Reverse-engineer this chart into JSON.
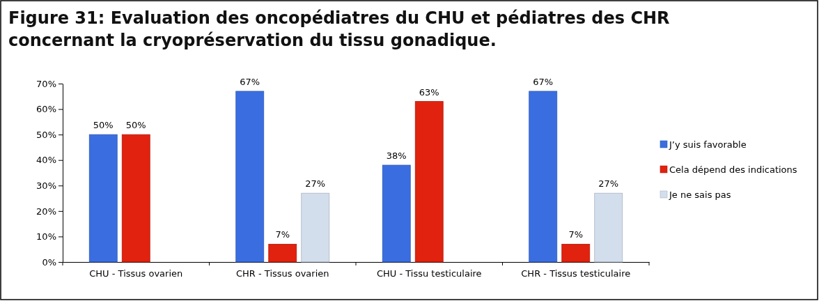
{
  "chart_data": {
    "type": "bar",
    "title": "Figure  31: Evaluation des oncopédiatres du CHU et pédiatres des CHR concernant la cryopréservation du tissu gonadique.",
    "categories": [
      "CHU - Tissus ovarien",
      "CHR - Tissus ovarien",
      "CHU - Tissu testiculaire",
      "CHR - Tissus testiculaire"
    ],
    "series": [
      {
        "name": "J’y suis favorable",
        "color": "#3a6ee0",
        "values": [
          50,
          67,
          38,
          67
        ],
        "value_labels": [
          "50%",
          "67%",
          "38%",
          "67%"
        ]
      },
      {
        "name": "Cela dépend des indications",
        "color": "#e0220e",
        "values": [
          50,
          7,
          63,
          7
        ],
        "value_labels": [
          "50%",
          "7%",
          "63%",
          "7%"
        ]
      },
      {
        "name": "Je ne sais pas",
        "color": "#d3deec",
        "values": [
          null,
          27,
          null,
          27
        ],
        "value_labels": [
          null,
          "27%",
          null,
          "27%"
        ]
      }
    ],
    "ylim": [
      0,
      70
    ],
    "yticks": [
      {
        "value": 0,
        "label": "0%"
      },
      {
        "value": 10,
        "label": "10%"
      },
      {
        "value": 20,
        "label": "20%"
      },
      {
        "value": 30,
        "label": "30%"
      },
      {
        "value": 40,
        "label": "40%"
      },
      {
        "value": 50,
        "label": "50%"
      },
      {
        "value": 60,
        "label": "60%"
      },
      {
        "value": 70,
        "label": "70%"
      }
    ],
    "grid": false,
    "legend": "right"
  }
}
